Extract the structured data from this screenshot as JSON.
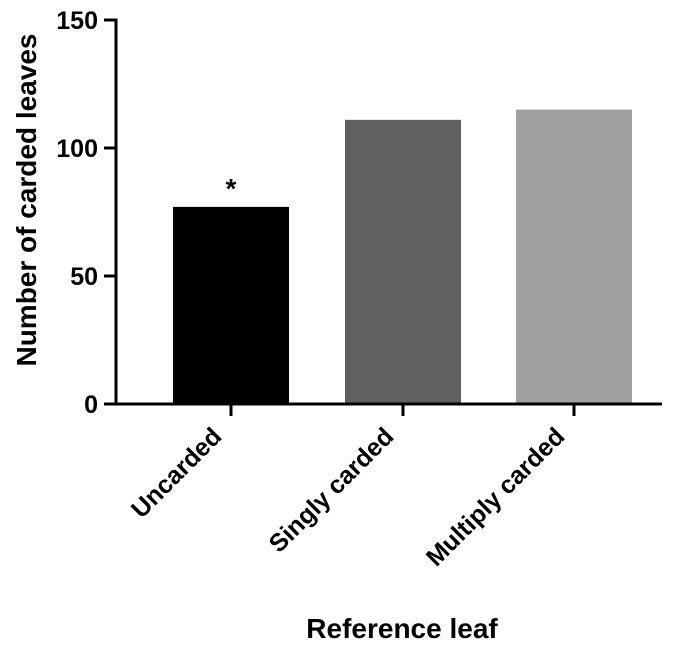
{
  "chart_data": {
    "type": "bar",
    "categories": [
      "Uncarded",
      "Singly carded",
      "Multiply carded"
    ],
    "values": [
      77,
      111,
      115
    ],
    "bar_colors": [
      "#000000",
      "#606060",
      "#a0a0a2"
    ],
    "xlabel": "Reference leaf",
    "ylabel": "Number of carded leaves",
    "ylim": [
      0,
      150
    ],
    "yticks": [
      0,
      50,
      100,
      150
    ],
    "grid": false,
    "annotations": [
      {
        "category": "Uncarded",
        "text": "*"
      }
    ]
  }
}
